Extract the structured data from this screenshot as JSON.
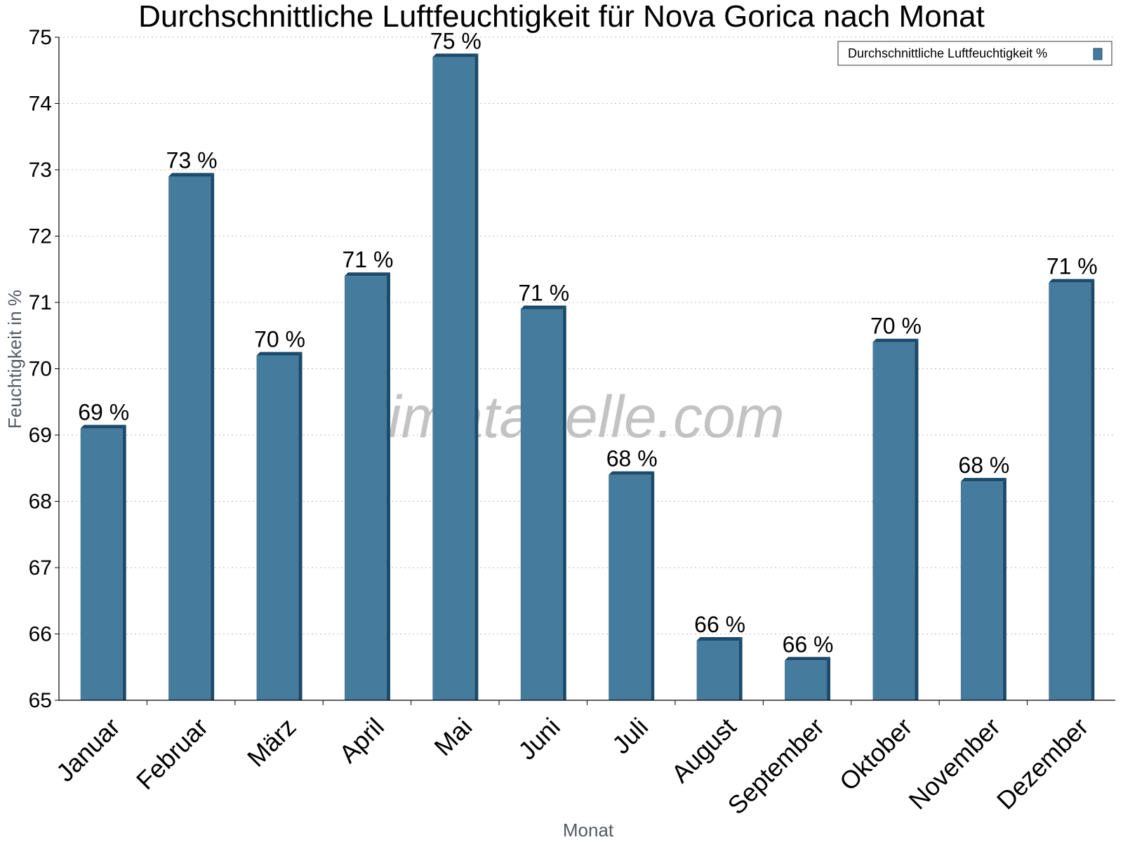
{
  "chart_data": {
    "type": "bar",
    "title": "Durchschnittliche Luftfeuchtigkeit für Nova Gorica nach Monat",
    "xlabel": "Monat",
    "ylabel": "Feuchtigkeit in %",
    "ylim": [
      65,
      75
    ],
    "yticks": [
      "65",
      "66",
      "67",
      "68",
      "69",
      "70",
      "71",
      "72",
      "73",
      "74",
      "75"
    ],
    "grid": "horizontal dotted",
    "legend_position": "top-right",
    "watermark": "klimatabelle.com",
    "colors": {
      "bar": "#457b9d",
      "bar_side": "#1b4a6b",
      "grid": "#bbbbbb"
    },
    "categories": [
      "Januar",
      "Februar",
      "März",
      "April",
      "Mai",
      "Juni",
      "Juli",
      "August",
      "September",
      "Oktober",
      "November",
      "Dezember"
    ],
    "series": [
      {
        "name": "Durchschnittliche Luftfeuchtigkeit %",
        "values": [
          69.1,
          72.9,
          70.2,
          71.4,
          74.7,
          70.9,
          68.4,
          65.9,
          65.6,
          70.4,
          68.3,
          71.3
        ],
        "labels": [
          "69 %",
          "73 %",
          "70 %",
          "71 %",
          "75 %",
          "71 %",
          "68 %",
          "66 %",
          "66 %",
          "70 %",
          "68 %",
          "71 %"
        ]
      }
    ]
  }
}
